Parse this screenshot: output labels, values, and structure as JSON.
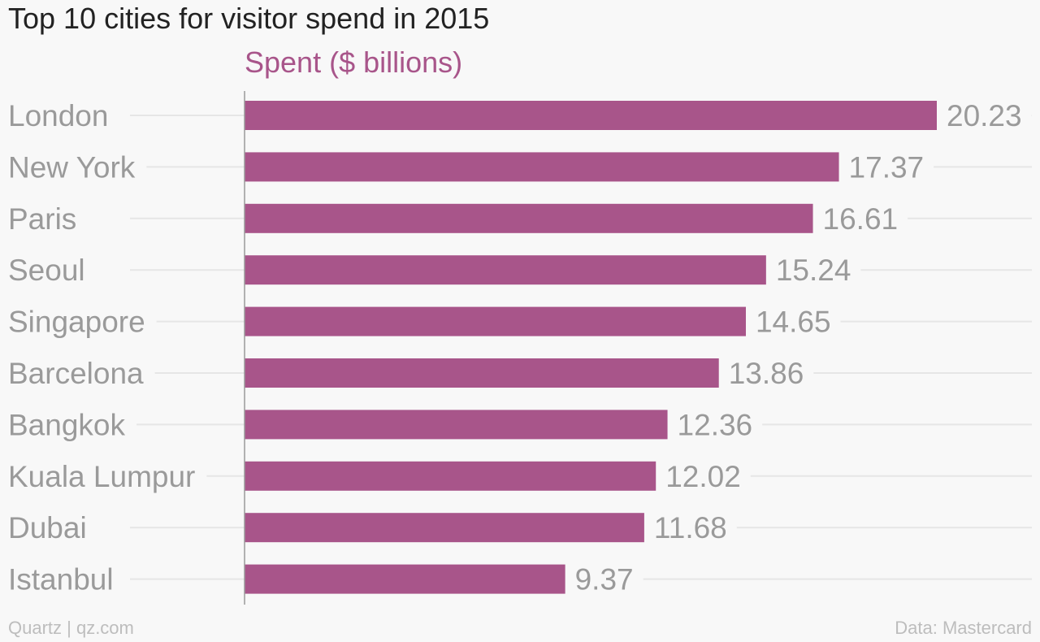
{
  "chart_title": "Top 10 cities for visitor spend in 2015",
  "footer": {
    "source_left": "Quartz | qz.com",
    "source_right": "Data: Mastercard"
  },
  "colors": {
    "bar": "#a8558a",
    "label": "#9a9a9a",
    "gridline": "#e6e6e6",
    "axis": "#999999",
    "title": "#222222"
  },
  "chart_data": {
    "type": "bar",
    "orientation": "horizontal",
    "title": "Top 10 cities for visitor spend in 2015",
    "categories": [
      "London",
      "New York",
      "Paris",
      "Seoul",
      "Singapore",
      "Barcelona",
      "Bangkok",
      "Kuala Lumpur",
      "Dubai",
      "Istanbul"
    ],
    "series": [
      {
        "name": "Spent ($ billions)",
        "values": [
          20.23,
          17.37,
          16.61,
          15.24,
          14.65,
          13.86,
          12.36,
          12.02,
          11.68,
          9.37
        ],
        "value_labels": [
          "20.23",
          "17.37",
          "16.61",
          "15.24",
          "14.65",
          "13.86",
          "12.36",
          "12.02",
          "11.68",
          "9.37"
        ]
      }
    ],
    "xlim": [
      0,
      20.23
    ],
    "grid": true,
    "legend": "none"
  }
}
